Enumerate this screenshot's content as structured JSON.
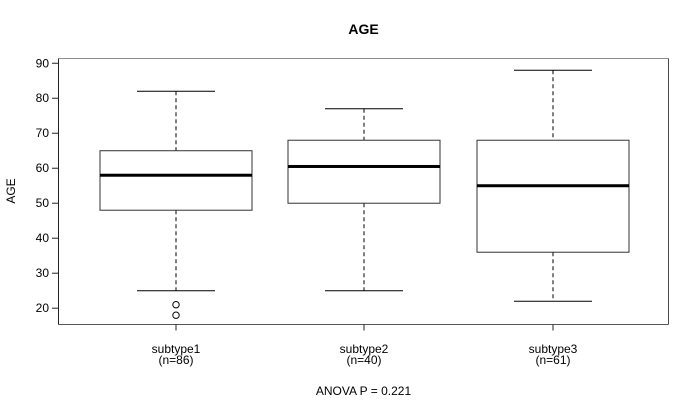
{
  "chart_data": {
    "type": "boxplot",
    "title": "AGE",
    "xlabel": "",
    "ylabel": "AGE",
    "annotation": "ANOVA P = 0.221",
    "y_ticks": [
      20,
      30,
      40,
      50,
      60,
      70,
      80,
      90
    ],
    "ylim": [
      15.2,
      91.5
    ],
    "grid": false,
    "categories": [
      "subtype1",
      "subtype2",
      "subtype3"
    ],
    "groups": [
      {
        "label": "subtype1",
        "count_label": "(n=86)",
        "n": 86,
        "whisker_low": 25,
        "q1": 48,
        "median": 58,
        "q3": 65,
        "whisker_high": 82,
        "outliers": [
          21,
          18
        ]
      },
      {
        "label": "subtype2",
        "count_label": "(n=40)",
        "n": 40,
        "whisker_low": 25,
        "q1": 50,
        "median": 60.5,
        "q3": 68,
        "whisker_high": 77,
        "outliers": []
      },
      {
        "label": "subtype3",
        "count_label": "(n=61)",
        "n": 61,
        "whisker_low": 22,
        "q1": 36,
        "median": 55,
        "q3": 68,
        "whisker_high": 88,
        "outliers": []
      }
    ]
  },
  "colors": {
    "background": "#ffffff",
    "line": "#000000",
    "box": "#333333",
    "axis": "#222222",
    "frame_top": "#8f8f8f",
    "frame_right": "#4a4a4a",
    "frame_bottom": "#555555",
    "frame_left": "#222222"
  }
}
